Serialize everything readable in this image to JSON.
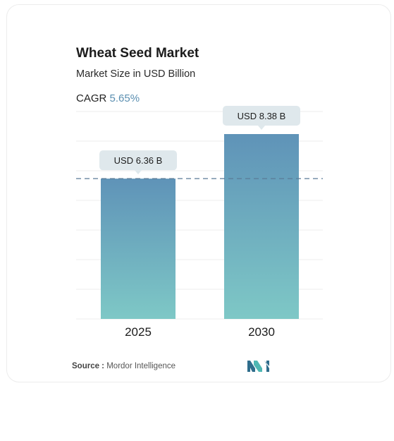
{
  "header": {
    "title": "Wheat Seed Market",
    "subtitle": "Market Size in USD Billion",
    "cagr_label": "CAGR",
    "cagr_value": "5.65%"
  },
  "chart_data": {
    "type": "bar",
    "title": "Wheat Seed Market",
    "subtitle": "Market Size in USD Billion",
    "categories": [
      "2025",
      "2030"
    ],
    "values": [
      6.36,
      8.38
    ],
    "data_labels": [
      "USD 6.36 B",
      "USD 8.38 B"
    ],
    "unit": "USD Billion",
    "ylim": [
      0,
      8.38
    ],
    "grid": true,
    "reference_line": 6.36,
    "xlabel": "",
    "ylabel": ""
  },
  "colors": {
    "bar_top": "#5f93b8",
    "bar_bottom": "#7ec8c6",
    "label_bg": "#dfe8ec",
    "reference_line": "#5a7a96",
    "grid": "#ececec"
  },
  "footer": {
    "source_label": "Source :",
    "source_name": "Mordor Intelligence",
    "logo_icon": "mordor-intelligence-logo-icon"
  }
}
